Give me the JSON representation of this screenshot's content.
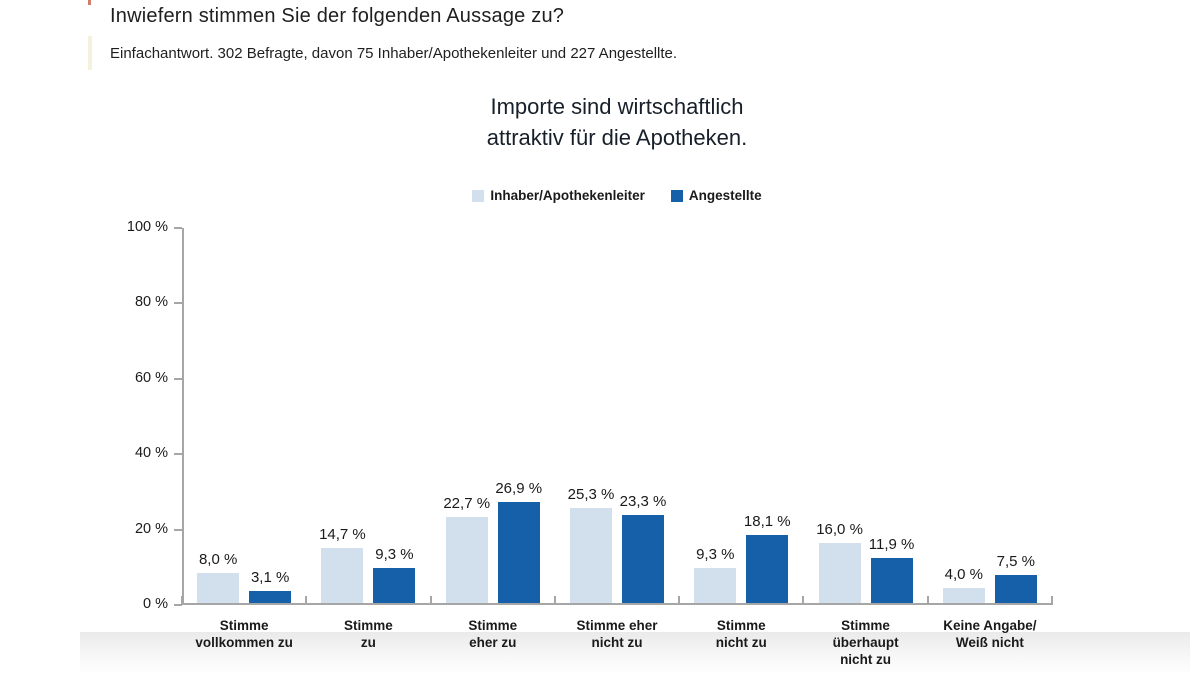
{
  "header": {
    "title": "Inwiefern stimmen Sie der folgenden Aussage zu?",
    "subtitle": "Einfachantwort. 302 Befragte, davon 75 Inhaber/Apothekenleiter und 227 Angestellte."
  },
  "colors": {
    "owner_series": "#d2dfec",
    "employee_series": "#1560a8",
    "axis": "#a6a6a6",
    "text": "#1a1a1a"
  },
  "chart_data": {
    "type": "bar",
    "title": "Importe sind wirtschaftlich attraktiv für die Apotheken.",
    "title_lines": [
      "Importe sind wirtschaftlich",
      "attraktiv für die Apotheken."
    ],
    "legend_position": "top-center",
    "grid": false,
    "ylim": [
      0,
      100
    ],
    "y_ticks": [
      {
        "value": 100,
        "label": "100 %"
      },
      {
        "value": 80,
        "label": "80 %"
      },
      {
        "value": 60,
        "label": "60 %"
      },
      {
        "value": 40,
        "label": "40 %"
      },
      {
        "value": 20,
        "label": "20 %"
      },
      {
        "value": 0,
        "label": "0 %"
      }
    ],
    "categories": [
      "Stimme vollkommen zu",
      "Stimme zu",
      "Stimme eher zu",
      "Stimme eher nicht zu",
      "Stimme nicht zu",
      "Stimme überhaupt nicht zu",
      "Keine Angabe/Weiß nicht"
    ],
    "category_label_lines": [
      [
        "Stimme",
        "vollkommen zu"
      ],
      [
        "Stimme",
        "zu"
      ],
      [
        "Stimme",
        "eher zu"
      ],
      [
        "Stimme eher",
        "nicht zu"
      ],
      [
        "Stimme",
        "nicht zu"
      ],
      [
        "Stimme",
        "überhaupt",
        "nicht zu"
      ],
      [
        "Keine Angabe/",
        "Weiß nicht"
      ]
    ],
    "series": [
      {
        "name": "Inhaber/Apothekenleiter",
        "color": "#d2dfec",
        "values": [
          8.0,
          14.7,
          22.7,
          25.3,
          9.3,
          16.0,
          4.0
        ],
        "value_labels": [
          "8,0 %",
          "14,7 %",
          "22,7 %",
          "25,3 %",
          "9,3 %",
          "16,0 %",
          "4,0 %"
        ]
      },
      {
        "name": "Angestellte",
        "color": "#1560a8",
        "values": [
          3.1,
          9.3,
          26.9,
          23.3,
          18.1,
          11.9,
          7.5
        ],
        "value_labels": [
          "3,1 %",
          "9,3 %",
          "26,9 %",
          "23,3 %",
          "18,1 %",
          "11,9 %",
          "7,5 %"
        ]
      }
    ]
  }
}
